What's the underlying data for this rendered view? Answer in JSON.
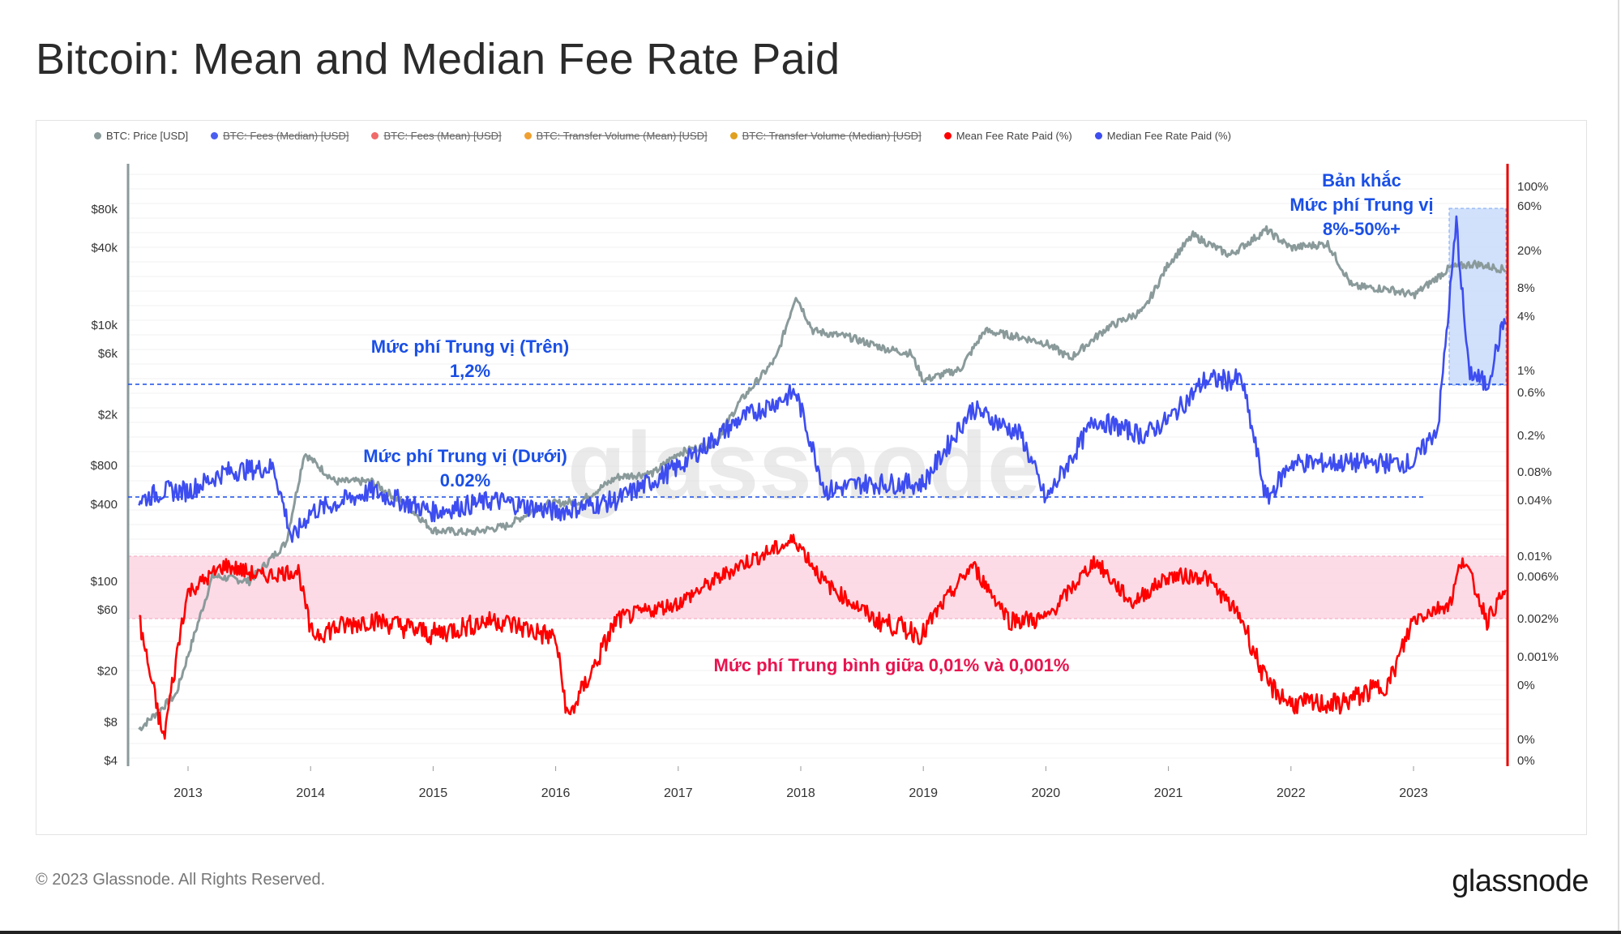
{
  "title": "Bitcoin: Mean and Median Fee Rate Paid",
  "footer": {
    "copyright": "© 2023 Glassnode. All Rights Reserved.",
    "brand": "glassnode"
  },
  "watermark": "glassnode",
  "colors": {
    "price": "#8a9a9a",
    "mean": "#ff0000",
    "median": "#3d4df0",
    "band_pink": "#fcd5e2",
    "band_blue": "#c9dcfb",
    "annotation_blue": "#1a4fe6",
    "annotation_pink": "#e8134f"
  },
  "legend": [
    {
      "label": "BTC: Price [USD]",
      "color": "#8a9a9a",
      "active": true
    },
    {
      "label": "BTC: Fees (Median) [USD]",
      "color": "#4a5ef0",
      "active": false
    },
    {
      "label": "BTC: Fees (Mean) [USD]",
      "color": "#f06a6a",
      "active": false
    },
    {
      "label": "BTC: Transfer Volume (Mean) [USD]",
      "color": "#f0a030",
      "active": false
    },
    {
      "label": "BTC: Transfer Volume (Median) [USD]",
      "color": "#e0a020",
      "active": false
    },
    {
      "label": "Mean Fee Rate Paid (%)",
      "color": "#ff0000",
      "active": true
    },
    {
      "label": "Median Fee Rate Paid (%)",
      "color": "#3d4df0",
      "active": true
    }
  ],
  "annotations": {
    "upper": {
      "line1": "Mức phí Trung vị (Trên)",
      "line2": "1,2%"
    },
    "lower": {
      "line1": "Mức phí Trung vị (Dưới)",
      "line2": "0.02%"
    },
    "spike": {
      "line1": "Bản khắc",
      "line2": "Mức phí Trung vị",
      "line3": "8%-50%+"
    },
    "mean_band": "Mức phí Trung bình giữa 0,01% và 0,001%"
  },
  "chart_data": {
    "type": "line",
    "x_ticks": [
      "2013",
      "2014",
      "2015",
      "2016",
      "2017",
      "2018",
      "2019",
      "2020",
      "2021",
      "2022",
      "2023"
    ],
    "y_left_ticks": [
      "$80k",
      "$40k",
      "$10k",
      "$6k",
      "$2k",
      "$800",
      "$400",
      "$100",
      "$60",
      "$20",
      "$8",
      "$4"
    ],
    "y_left_scale": "log",
    "y_right_ticks": [
      "100%",
      "60%",
      "20%",
      "8%",
      "4%",
      "1%",
      "0.6%",
      "0.2%",
      "0.08%",
      "0.04%",
      "0.01%",
      "0.006%",
      "0.002%",
      "0.001%",
      "0%",
      "0%",
      "0%"
    ],
    "legend_placement": "top",
    "grid": true,
    "series": [
      {
        "name": "BTC: Price [USD]",
        "x": [
          2012.6,
          2012.9,
          2013.2,
          2013.5,
          2013.8,
          2013.95,
          2014.2,
          2014.5,
          2014.8,
          2015.0,
          2015.3,
          2015.6,
          2015.9,
          2016.2,
          2016.5,
          2016.8,
          2017.0,
          2017.3,
          2017.5,
          2017.8,
          2017.96,
          2018.1,
          2018.4,
          2018.7,
          2018.9,
          2019.0,
          2019.3,
          2019.5,
          2019.8,
          2020.0,
          2020.2,
          2020.5,
          2020.8,
          2021.0,
          2021.2,
          2021.5,
          2021.8,
          2022.0,
          2022.3,
          2022.5,
          2022.8,
          2023.0,
          2023.3,
          2023.5,
          2023.75
        ],
        "y": [
          7,
          13,
          110,
          100,
          200,
          1000,
          600,
          600,
          380,
          250,
          240,
          270,
          400,
          420,
          650,
          700,
          1000,
          1200,
          2500,
          5500,
          17000,
          9000,
          8000,
          6500,
          6000,
          3700,
          4500,
          9000,
          8000,
          7200,
          5500,
          9500,
          13000,
          30000,
          50000,
          35000,
          55000,
          40000,
          43000,
          20000,
          19000,
          17000,
          28000,
          30000,
          27000
        ]
      },
      {
        "name": "Mean Fee Rate Paid (%)",
        "x": [
          2012.6,
          2012.8,
          2013.0,
          2013.3,
          2013.6,
          2013.9,
          2014.0,
          2014.5,
          2015.0,
          2015.5,
          2016.0,
          2016.1,
          2016.5,
          2017.0,
          2017.5,
          2017.96,
          2018.2,
          2018.6,
          2019.0,
          2019.4,
          2019.7,
          2020.0,
          2020.4,
          2020.7,
          2021.0,
          2021.3,
          2021.6,
          2021.8,
          2022.0,
          2022.4,
          2022.8,
          2023.0,
          2023.3,
          2023.4,
          2023.6,
          2023.75
        ],
        "y": [
          0.002,
          0.0002,
          0.004,
          0.008,
          0.006,
          0.007,
          0.0015,
          0.002,
          0.0015,
          0.002,
          0.0014,
          0.0003,
          0.002,
          0.003,
          0.008,
          0.015,
          0.005,
          0.002,
          0.0015,
          0.008,
          0.002,
          0.002,
          0.009,
          0.003,
          0.006,
          0.006,
          0.002,
          0.0006,
          0.0004,
          0.0004,
          0.0006,
          0.002,
          0.003,
          0.01,
          0.002,
          0.004
        ]
      },
      {
        "name": "Median Fee Rate Paid (%)",
        "x": [
          2012.6,
          2012.8,
          2013.0,
          2013.3,
          2013.7,
          2013.85,
          2014.0,
          2014.5,
          2015.0,
          2015.5,
          2016.0,
          2016.5,
          2017.0,
          2017.5,
          2017.96,
          2018.2,
          2018.5,
          2019.0,
          2019.4,
          2019.8,
          2020.0,
          2020.4,
          2020.8,
          2021.0,
          2021.3,
          2021.6,
          2021.8,
          2022.0,
          2022.4,
          2022.8,
          2023.0,
          2023.2,
          2023.35,
          2023.45,
          2023.6,
          2023.75
        ],
        "y": [
          0.04,
          0.05,
          0.05,
          0.08,
          0.09,
          0.015,
          0.03,
          0.05,
          0.03,
          0.04,
          0.03,
          0.04,
          0.09,
          0.3,
          0.6,
          0.05,
          0.06,
          0.06,
          0.4,
          0.2,
          0.04,
          0.3,
          0.2,
          0.3,
          0.8,
          0.8,
          0.04,
          0.1,
          0.1,
          0.1,
          0.1,
          0.25,
          40,
          1,
          0.7,
          4
        ]
      }
    ]
  }
}
